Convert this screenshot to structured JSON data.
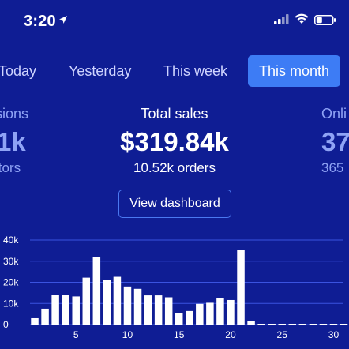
{
  "status_bar": {
    "time": "3:20",
    "location_icon": "location-arrow-icon",
    "signal_icon": "cell-signal-icon",
    "wifi_icon": "wifi-icon",
    "battery_icon": "battery-icon"
  },
  "tabs": [
    {
      "label": "Today",
      "active": false
    },
    {
      "label": "Yesterday",
      "active": false
    },
    {
      "label": "This week",
      "active": false
    },
    {
      "label": "This month",
      "active": true
    }
  ],
  "stats": {
    "left": {
      "label": "sions",
      "value": "1k",
      "sub": "itors"
    },
    "center": {
      "label": "Total sales",
      "value": "$319.84k",
      "sub": "10.52k orders"
    },
    "right": {
      "label": "Onli",
      "value": "37",
      "sub": "365"
    }
  },
  "view_dashboard_label": "View dashboard",
  "colors": {
    "background": "#0f1d94",
    "accent": "#3d7cf5",
    "bar": "#ffffff",
    "gridline": "#3a53e0",
    "muted_text": "#8fa3f5"
  },
  "chart_data": {
    "type": "bar",
    "categories": [
      1,
      2,
      3,
      4,
      5,
      6,
      7,
      8,
      9,
      10,
      11,
      12,
      13,
      14,
      15,
      16,
      17,
      18,
      19,
      20,
      21,
      22,
      23,
      24,
      25,
      26,
      27,
      28,
      29,
      30,
      31
    ],
    "values": [
      3000,
      7500,
      14200,
      14200,
      13300,
      22200,
      31800,
      21300,
      22600,
      18000,
      16900,
      13800,
      13800,
      12900,
      5500,
      6400,
      9800,
      10300,
      12400,
      11600,
      35500,
      1600,
      300,
      300,
      300,
      300,
      300,
      300,
      300,
      300,
      300
    ],
    "y_ticks": [
      "0",
      "10k",
      "20k",
      "30k",
      "40k"
    ],
    "y_tick_values": [
      0,
      10000,
      20000,
      30000,
      40000
    ],
    "x_ticks": [
      "5",
      "10",
      "15",
      "20",
      "25",
      "30"
    ],
    "x_tick_values": [
      5,
      10,
      15,
      20,
      25,
      30
    ],
    "ylim": [
      0,
      40000
    ],
    "grid": true
  }
}
